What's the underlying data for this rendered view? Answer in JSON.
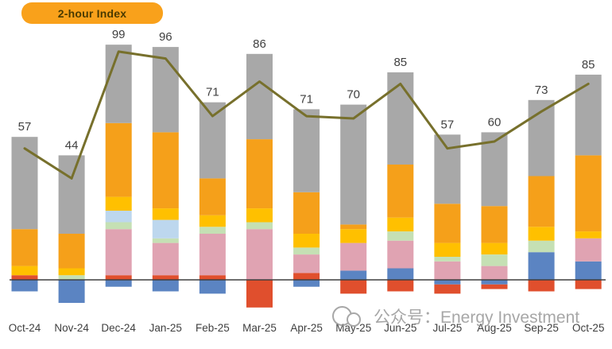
{
  "badge": {
    "label": "2-hour Index",
    "bg": "#F9A11B",
    "text_color": "#4A3A00"
  },
  "watermark": {
    "text": "公众号：Energy Investment"
  },
  "chart_data": {
    "type": "bar",
    "stacked": true,
    "title": "2-hour Index",
    "categories": [
      "Oct-24",
      "Nov-24",
      "Dec-24",
      "Jan-25",
      "Feb-25",
      "Mar-25",
      "Apr-25",
      "May-25",
      "Jun-25",
      "Jul-25",
      "Aug-25",
      "Sep-25",
      "Oct-25"
    ],
    "totals": [
      57,
      44,
      99,
      96,
      71,
      86,
      71,
      70,
      85,
      57,
      60,
      73,
      85
    ],
    "value_labels": [
      "57",
      "44",
      "99",
      "96",
      "71",
      "86",
      "71",
      "70",
      "85",
      "57",
      "60",
      "73",
      "85"
    ],
    "series": [
      {
        "name": "blue",
        "color": "#5B84C2",
        "values": [
          -5,
          -10,
          -3,
          -5,
          -6,
          0,
          -3,
          4,
          5,
          -2,
          -2,
          12,
          8
        ]
      },
      {
        "name": "red-orange",
        "color": "#E04F2D",
        "values": [
          2,
          0,
          2,
          2,
          2,
          -12,
          3,
          -6,
          -5,
          -4,
          -2,
          -5,
          -4
        ]
      },
      {
        "name": "pink",
        "color": "#E0A3B2",
        "values": [
          0,
          0,
          20,
          14,
          18,
          22,
          8,
          12,
          12,
          8,
          6,
          0,
          10
        ]
      },
      {
        "name": "light-green",
        "color": "#C5E0B4",
        "values": [
          0,
          2,
          3,
          2,
          3,
          3,
          3,
          0,
          4,
          2,
          5,
          5,
          0
        ]
      },
      {
        "name": "light-blue",
        "color": "#BDD7EE",
        "values": [
          0,
          0,
          5,
          8,
          0,
          0,
          0,
          0,
          0,
          0,
          0,
          0,
          0
        ]
      },
      {
        "name": "yellow",
        "color": "#FFC000",
        "values": [
          4,
          3,
          6,
          5,
          5,
          6,
          6,
          6,
          6,
          6,
          5,
          6,
          3
        ]
      },
      {
        "name": "orange",
        "color": "#F5A01A",
        "values": [
          16,
          15,
          32,
          33,
          16,
          30,
          18,
          2,
          23,
          17,
          16,
          22,
          33
        ]
      },
      {
        "name": "gray",
        "color": "#A8A8A8",
        "values": [
          40,
          34,
          34,
          37,
          33,
          37,
          36,
          52,
          40,
          30,
          32,
          33,
          35
        ]
      }
    ],
    "line": {
      "name": "2-hour Index",
      "color": "#77702C",
      "width": 3,
      "values": [
        57,
        44,
        99,
        96,
        71,
        86,
        71,
        70,
        85,
        57,
        60,
        73,
        85
      ]
    },
    "axis": {
      "zero_line": true,
      "gridlines": false,
      "ylim": [
        -15,
        105
      ],
      "xlabel": "",
      "ylabel": ""
    },
    "label_color": "#404040"
  }
}
